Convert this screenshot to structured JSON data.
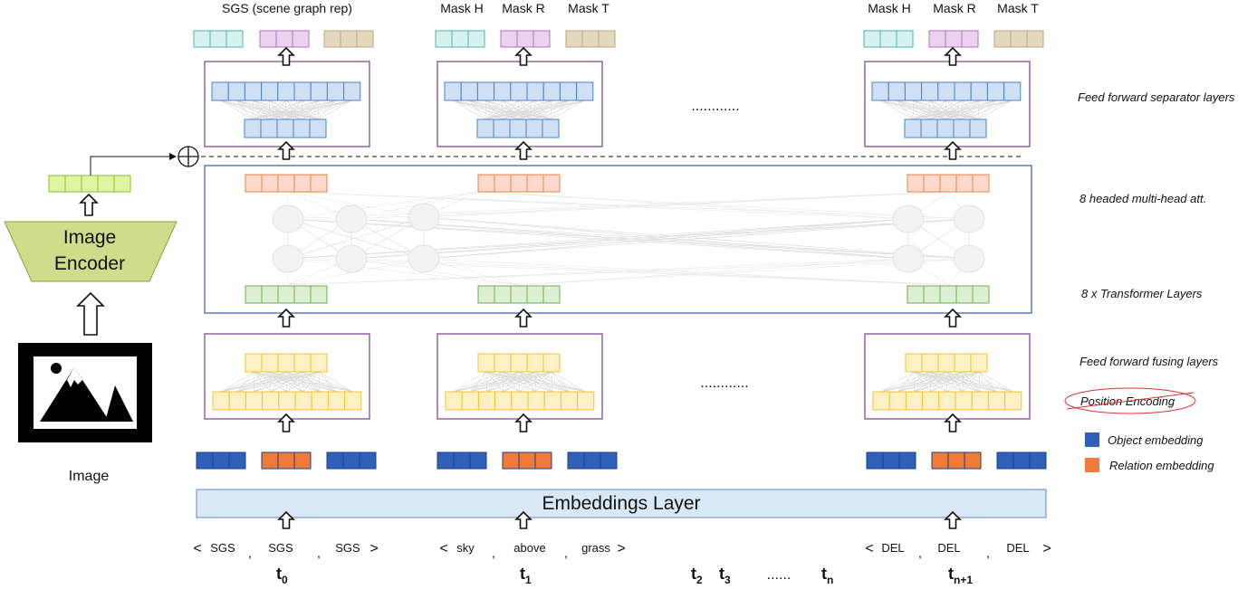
{
  "headers": {
    "sgs": "SGS (scene graph rep)",
    "mask_h": "Mask H",
    "mask_r": "Mask R",
    "mask_t": "Mask T"
  },
  "dots_top": "............",
  "dots_mid": "............",
  "dots_bottom": "......",
  "side_labels": {
    "separator": "Feed forward separator layers",
    "attention": "8 headed multi-head att.",
    "transformer": "8 x Transformer Layers",
    "fusing": "Feed forward fusing layers",
    "position": "Position Encoding"
  },
  "legend": [
    {
      "label": "Object embedding",
      "color": "#2f5fb8"
    },
    {
      "label": "Relation embedding",
      "color": "#f07a3a"
    }
  ],
  "image_encoder": {
    "line1": "Image",
    "line2": "Encoder",
    "caption": "Image"
  },
  "embeddings_layer": "Embeddings Layer",
  "columns": [
    {
      "tokens": [
        "SGS",
        "SGS",
        "SGS"
      ],
      "t_base": "t",
      "t_sub": "0"
    },
    {
      "tokens": [
        "sky",
        "above",
        "grass"
      ],
      "t_base": "t",
      "t_sub": "1"
    },
    {
      "tokens": [
        "DEL",
        "DEL",
        "DEL"
      ],
      "t_base": "t",
      "t_sub": "n+1"
    }
  ],
  "mid_t": [
    {
      "base": "t",
      "sub": "2"
    },
    {
      "base": "t",
      "sub": "3"
    },
    {
      "base": "t",
      "sub": "n"
    }
  ],
  "punct": {
    "open": "<",
    "close": ">",
    "comma": ","
  },
  "colors": {
    "teal": "#d6f2ee",
    "teal_stroke": "#4db6ac",
    "purple": "#ecd2f0",
    "purple_stroke": "#b46cc0",
    "tan": "#e3d7bd",
    "tan_stroke": "#b8a77e",
    "blue_light": "#cfe0f5",
    "blue_stroke": "#4a7fc9",
    "orange_light": "#fbd9cb",
    "orange_stroke": "#e8843f",
    "green_light": "#dcefd2",
    "green_stroke": "#6fae4f",
    "yellow_light": "#fdf0c2",
    "yellow_stroke": "#f1c232",
    "lime": "#dff5a3",
    "lime_stroke": "#8cbb2d",
    "box_purple": "#7a3c8c",
    "box_blue": "#2e5fa0",
    "emb_bg": "#d8e8f5",
    "emb_stroke": "#5b87be",
    "obj": "#2f5fb8",
    "rel": "#f07a3a",
    "encoder": "#cfdc8a",
    "red": "#d93434"
  }
}
